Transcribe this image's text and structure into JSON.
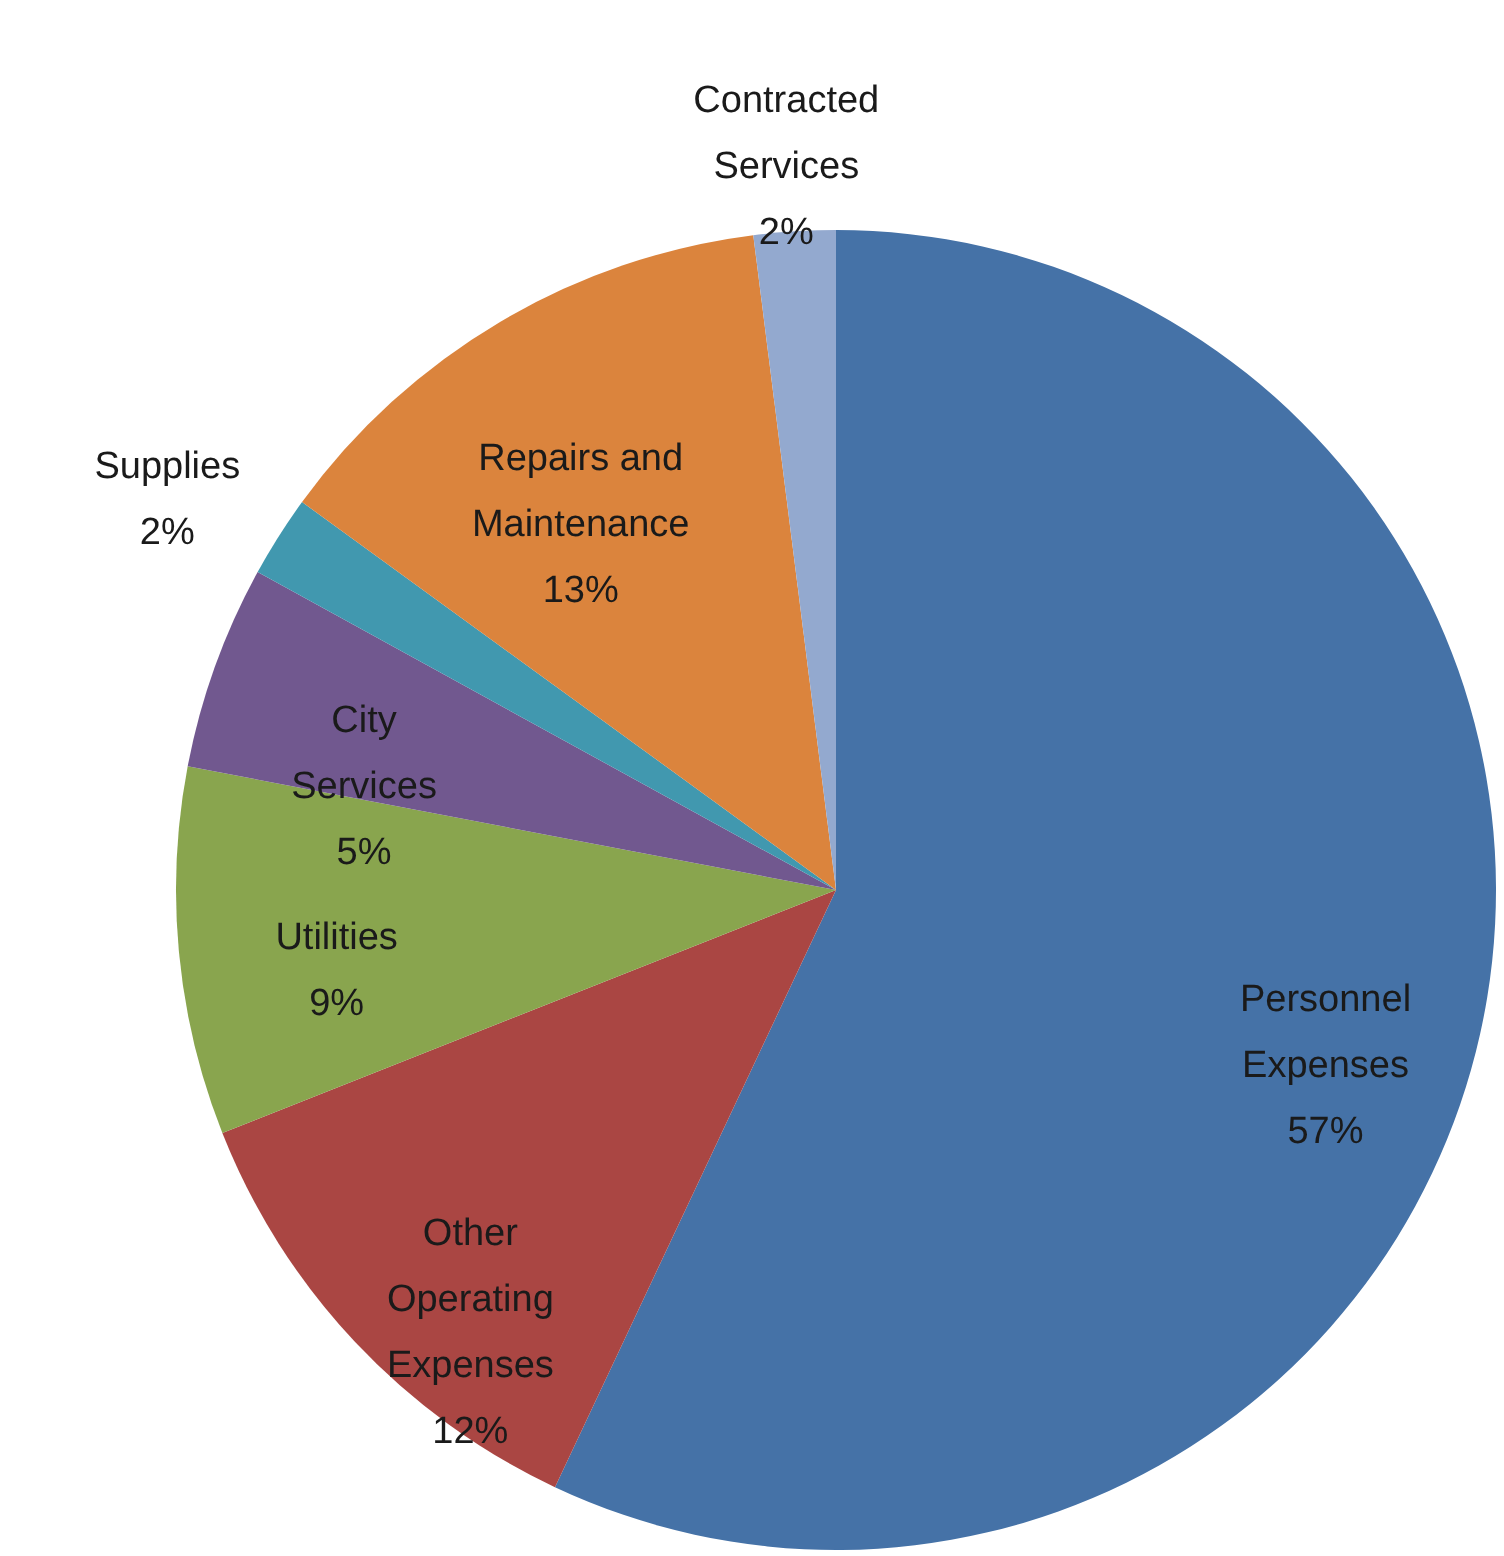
{
  "chart_data": {
    "type": "pie",
    "categories": [
      "Personnel Expenses",
      "Other Operating Expenses",
      "Utilities",
      "City Services",
      "Supplies",
      "Repairs and Maintenance",
      "Contracted Services"
    ],
    "values": [
      57,
      12,
      9,
      5,
      2,
      13,
      2
    ],
    "colors": [
      "#4572a7",
      "#aa4643",
      "#89a54e",
      "#71588f",
      "#4198af",
      "#db843d",
      "#93a9cf"
    ],
    "value_labels": [
      "57%",
      "12%",
      "9%",
      "5%",
      "2%",
      "13%",
      "2%"
    ]
  }
}
